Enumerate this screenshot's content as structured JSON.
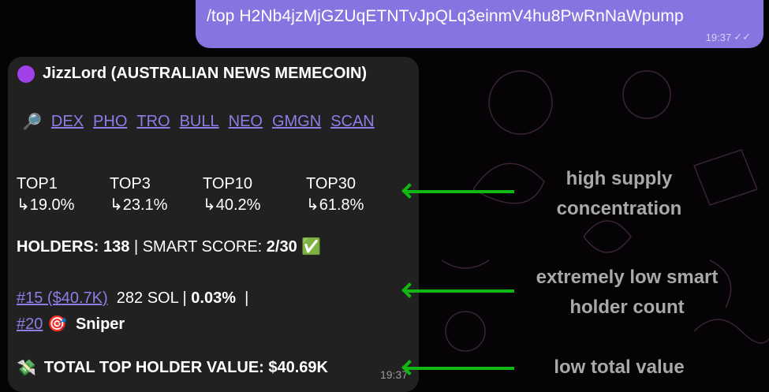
{
  "outgoing": {
    "text": "/top H2Nb4jzMjGZUqETNTvJpQLq3einmV4hu8PwRnNaWpump",
    "time": "19:37",
    "status_icon": "double-check-icon"
  },
  "incoming": {
    "title": "JizzLord (AUSTRALIAN NEWS MEMECOIN)",
    "title_icon": "purple-circle-icon",
    "search_icon": "magnifier-icon",
    "links": [
      "DEX",
      "PHO",
      "TRO",
      "BULL",
      "NEO",
      "GMGN",
      "SCAN"
    ],
    "tops": [
      {
        "label": "TOP1",
        "value": "↳19.0%"
      },
      {
        "label": "TOP3",
        "value": "↳23.1%"
      },
      {
        "label": "TOP10",
        "value": "↳40.2%"
      },
      {
        "label": "TOP30",
        "value": "↳61.8%"
      }
    ],
    "holders_label": "HOLDERS:",
    "holders_value": "138",
    "smart_label": "| SMART SCORE:",
    "smart_value": "2/30",
    "smart_icon": "✅",
    "wallet1_link": "#15 ($40.7K)",
    "wallet1_sol": "282 SOL |",
    "wallet1_pct": "0.03%",
    "wallet1_sep": "|",
    "wallet2_link": "#20",
    "wallet2_icon": "🎯",
    "wallet2_tag": "Sniper",
    "total_icon": "💸",
    "total": "TOTAL TOP HOLDER VALUE: $40.69K",
    "time": "19:37"
  },
  "annotations": [
    "high supply concentration",
    "extremely low smart holder count",
    "low total value"
  ],
  "annotation_arrow_color": "#12b812"
}
